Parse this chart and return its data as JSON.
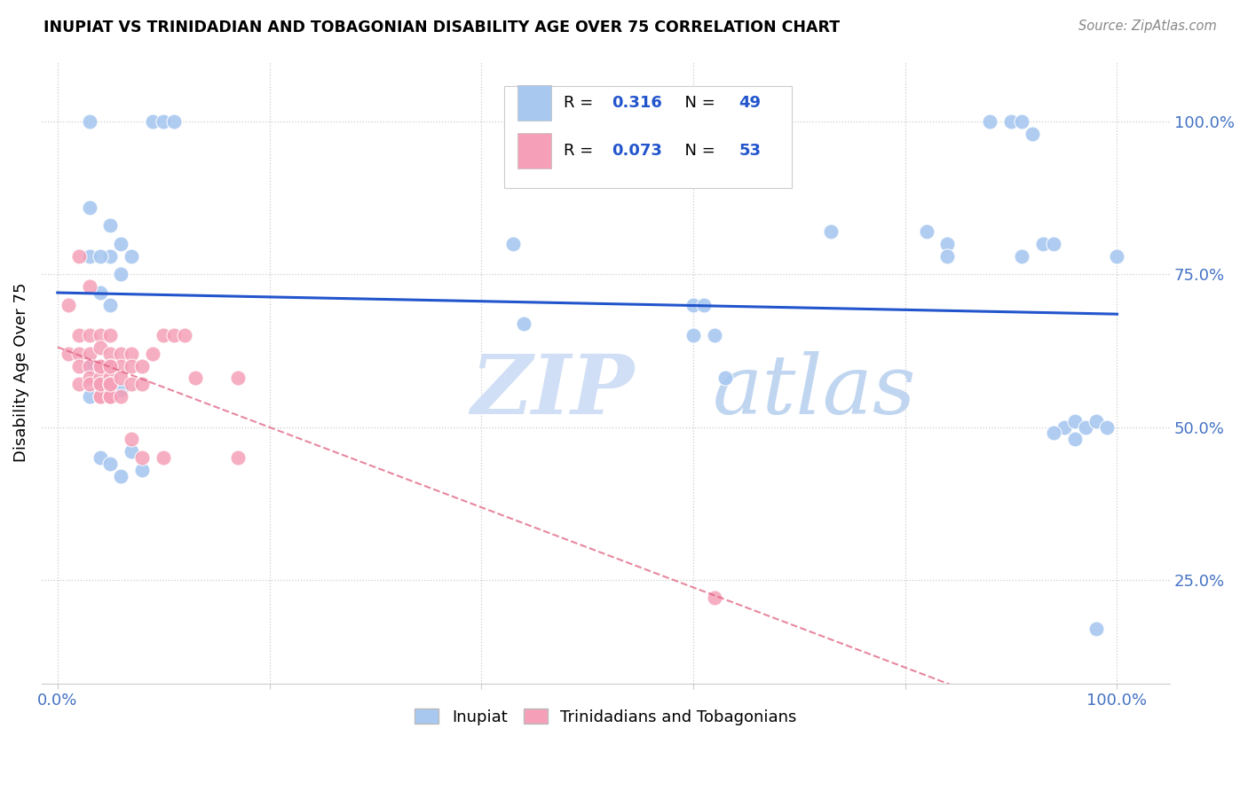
{
  "title": "INUPIAT VS TRINIDADIAN AND TOBAGONIAN DISABILITY AGE OVER 75 CORRELATION CHART",
  "source": "Source: ZipAtlas.com",
  "ylabel": "Disability Age Over 75",
  "legend_label1": "Inupiat",
  "legend_label2": "Trinidadians and Tobagonians",
  "r1": "0.316",
  "n1": "49",
  "r2": "0.073",
  "n2": "53",
  "color_blue": "#a8c8f0",
  "color_pink": "#f5a0b8",
  "color_blue_line": "#2255cc",
  "color_pink_line": "#e06080",
  "color_tick_labels": "#4472c4",
  "watermark_zip_color": "#d0dff5",
  "watermark_atlas_color": "#c0d5f0",
  "blue_x": [
    0.03,
    0.09,
    0.1,
    0.11,
    0.03,
    0.05,
    0.05,
    0.06,
    0.07,
    0.03,
    0.04,
    0.04,
    0.05,
    0.06,
    0.43,
    0.44,
    0.6,
    0.61,
    0.6,
    0.62,
    0.63,
    0.73,
    0.82,
    0.84,
    0.88,
    0.9,
    0.91,
    0.92,
    0.93,
    0.94,
    0.95,
    0.96,
    0.97,
    0.98,
    0.99,
    1.0,
    0.84,
    0.91,
    0.94,
    0.96,
    0.98,
    0.03,
    0.03,
    0.04,
    0.05,
    0.06,
    0.06,
    0.07,
    0.08
  ],
  "blue_y": [
    1.0,
    1.0,
    1.0,
    1.0,
    0.86,
    0.83,
    0.78,
    0.8,
    0.78,
    0.78,
    0.78,
    0.72,
    0.7,
    0.75,
    0.8,
    0.67,
    0.7,
    0.7,
    0.65,
    0.65,
    0.58,
    0.82,
    0.82,
    0.8,
    1.0,
    1.0,
    1.0,
    0.98,
    0.8,
    0.8,
    0.5,
    0.51,
    0.5,
    0.51,
    0.5,
    0.78,
    0.78,
    0.78,
    0.49,
    0.48,
    0.17,
    0.6,
    0.55,
    0.45,
    0.44,
    0.42,
    0.56,
    0.46,
    0.43
  ],
  "pink_x": [
    0.01,
    0.01,
    0.02,
    0.02,
    0.02,
    0.02,
    0.03,
    0.03,
    0.03,
    0.03,
    0.03,
    0.04,
    0.04,
    0.04,
    0.04,
    0.04,
    0.04,
    0.04,
    0.04,
    0.05,
    0.05,
    0.05,
    0.05,
    0.05,
    0.05,
    0.05,
    0.05,
    0.05,
    0.05,
    0.06,
    0.06,
    0.06,
    0.07,
    0.07,
    0.07,
    0.08,
    0.08,
    0.09,
    0.1,
    0.11,
    0.12,
    0.13,
    0.17,
    0.17,
    0.02,
    0.03,
    0.04,
    0.05,
    0.06,
    0.07,
    0.08,
    0.1,
    0.62
  ],
  "pink_y": [
    0.7,
    0.62,
    0.65,
    0.62,
    0.6,
    0.57,
    0.65,
    0.62,
    0.6,
    0.58,
    0.57,
    0.65,
    0.63,
    0.6,
    0.58,
    0.57,
    0.55,
    0.55,
    0.57,
    0.65,
    0.62,
    0.6,
    0.58,
    0.57,
    0.55,
    0.55,
    0.57,
    0.55,
    0.57,
    0.62,
    0.6,
    0.58,
    0.62,
    0.6,
    0.57,
    0.6,
    0.57,
    0.62,
    0.65,
    0.65,
    0.65,
    0.58,
    0.45,
    0.58,
    0.78,
    0.73,
    0.6,
    0.6,
    0.55,
    0.48,
    0.45,
    0.45,
    0.22
  ],
  "ytick_positions": [
    0.25,
    0.5,
    0.75,
    1.0
  ],
  "ytick_labels": [
    "25.0%",
    "50.0%",
    "75.0%",
    "100.0%"
  ],
  "xlim": [
    -0.015,
    1.05
  ],
  "ylim": [
    0.08,
    1.1
  ]
}
